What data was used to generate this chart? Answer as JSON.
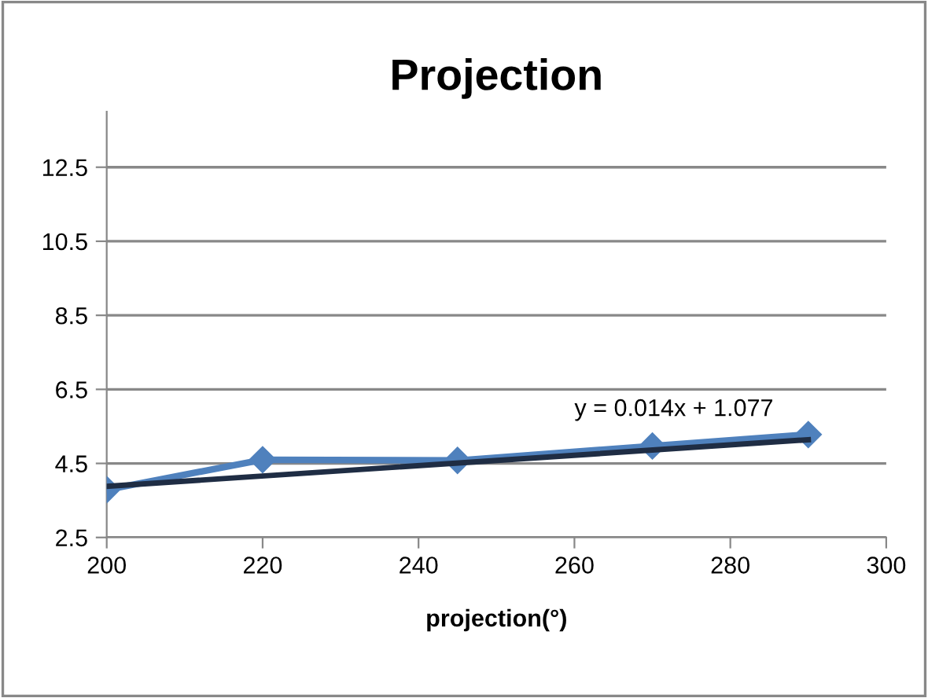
{
  "chart_data": {
    "type": "line",
    "title": "Projection",
    "xlabel": "projection(°)",
    "x": [
      200,
      220,
      245,
      270,
      290
    ],
    "series": [
      {
        "color": "#4f81bd",
        "values": [
          3.79,
          4.6,
          4.58,
          4.97,
          5.28
        ],
        "marker": "diamond"
      },
      {
        "type": "line",
        "color": "#1f2d44",
        "x": [
          200,
          290
        ],
        "values": [
          3.88,
          5.14
        ],
        "marker": "none"
      }
    ],
    "xlim": [
      200,
      300
    ],
    "xticks": [
      200,
      220,
      240,
      260,
      280,
      300
    ],
    "ylim": [
      2.5,
      14
    ],
    "yticks": [
      2.5,
      4.5,
      6.5,
      8.5,
      10.5,
      12.5
    ],
    "grid": "y",
    "annotations": [
      "y = 0.014x + 1.077"
    ]
  }
}
